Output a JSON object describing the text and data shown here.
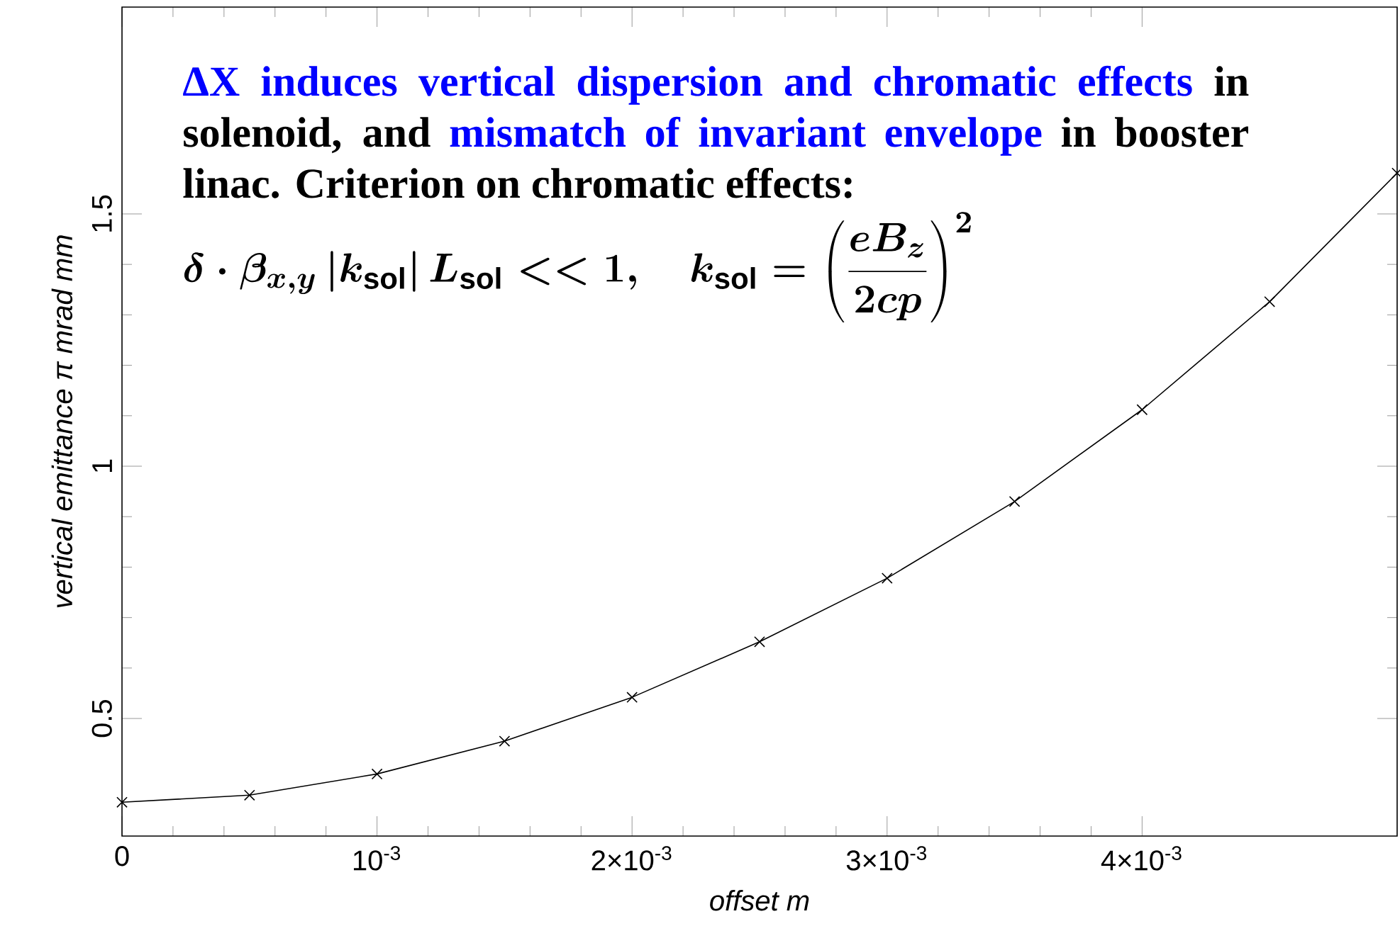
{
  "chart_data": {
    "type": "line",
    "xlabel": "offset m",
    "ylabel": "vertical emittance π mrad mm",
    "x": [
      0,
      0.0005,
      0.001,
      0.0015,
      0.002,
      0.0025,
      0.003,
      0.0035,
      0.004,
      0.0045,
      0.005
    ],
    "series": [
      {
        "color": "#000000",
        "values": [
          0.334,
          0.348,
          0.39,
          0.455,
          0.542,
          0.652,
          0.778,
          0.93,
          1.112,
          1.326,
          1.581
        ]
      }
    ],
    "xlim": [
      0,
      0.005
    ],
    "ylim": [
      0.267,
      1.91
    ],
    "xticks": [
      0,
      {
        "value": 0.001,
        "label": "10$^{-3}$"
      },
      {
        "value": 0.002,
        "label": "2×10$^{-3}$"
      },
      {
        "value": 0.003,
        "label": "3×10$^{-3}$"
      },
      {
        "value": 0.004,
        "label": "4×10$^{-3}$"
      }
    ],
    "yticks": [
      0.5,
      1,
      1.5
    ],
    "marker": "cross",
    "line_style": "solid",
    "grid": false,
    "legend": false,
    "annotations": [
      "ΔX induces vertical dispersion and chromatic effects",
      "in solenoid, and",
      "mismatch of invariant envelope",
      "in booster linac. Criterion on chromatic effects:",
      "\\delta\\cdot\\beta_{x,y}\\left|k_{\\mathrm{sol}}\\right|L_{\\mathrm{sol}} << 1,\\quad k_{\\mathrm{sol}}=\\left(\\frac{eB_z}{2cp}\\right)^2"
    ]
  }
}
